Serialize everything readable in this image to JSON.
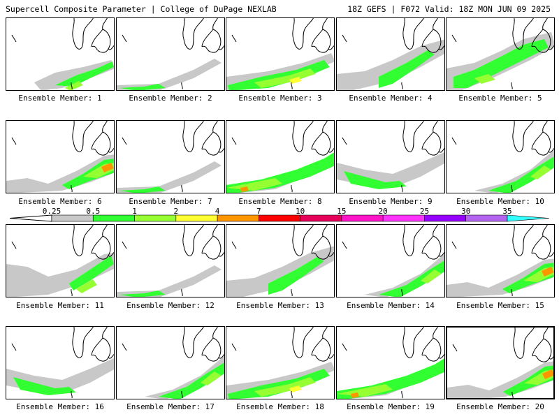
{
  "header": {
    "left": "Supercell Composite Parameter | College of DuPage NEXLAB",
    "right": "18Z GEFS | F072 Valid: 18Z MON JUN 09 2025"
  },
  "members": [
    {
      "label": "Ensemble Member: 1"
    },
    {
      "label": "Ensemble Member: 2"
    },
    {
      "label": "Ensemble Member: 3"
    },
    {
      "label": "Ensemble Member: 4"
    },
    {
      "label": "Ensemble Member: 5"
    },
    {
      "label": "Ensemble Member: 6"
    },
    {
      "label": "Ensemble Member: 7"
    },
    {
      "label": "Ensemble Member: 8"
    },
    {
      "label": "Ensemble Member: 9"
    },
    {
      "label": "Ensemble Member: 10"
    },
    {
      "label": "Ensemble Member: 11"
    },
    {
      "label": "Ensemble Member: 12"
    },
    {
      "label": "Ensemble Member: 13"
    },
    {
      "label": "Ensemble Member: 14"
    },
    {
      "label": "Ensemble Member: 15"
    },
    {
      "label": "Ensemble Member: 16"
    },
    {
      "label": "Ensemble Member: 17"
    },
    {
      "label": "Ensemble Member: 18"
    },
    {
      "label": "Ensemble Member: 19"
    },
    {
      "label": "Ensemble Member: 20"
    }
  ],
  "colorbar": {
    "ticks": [
      "0.25",
      "0.5",
      "1",
      "2",
      "4",
      "7",
      "10",
      "15",
      "20",
      "25",
      "30",
      "35"
    ],
    "colors": [
      "#c8c8c8",
      "#32ff32",
      "#96ff32",
      "#ffff32",
      "#ff9600",
      "#ff0000",
      "#e6005a",
      "#ff14c8",
      "#ff32ff",
      "#9600ff",
      "#b464f0",
      "#32ffff"
    ]
  }
}
